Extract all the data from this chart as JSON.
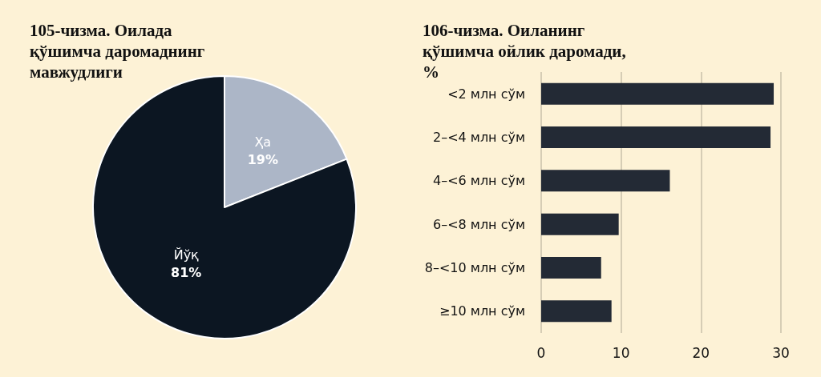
{
  "chart_data": [
    {
      "type": "pie",
      "title": "105-чизма. Оилада қўшимча даромаднинг мавжудлиги",
      "categories": [
        "Ҳа",
        "Йўқ"
      ],
      "values": [
        19,
        81
      ],
      "colors": [
        "#acb6c7",
        "#0c1622"
      ],
      "value_labels": [
        "19%",
        "81%"
      ]
    },
    {
      "type": "bar",
      "orientation": "horizontal",
      "title": "106-чизма. Оиланинг қўшимча ойлик даромади, %",
      "categories": [
        "<2 млн сўм",
        "2–<4 млн сўм",
        "4–<6 млн сўм",
        "6–<8 млн сўм",
        "8–<10 млн сўм",
        "≥10 млн сўм"
      ],
      "values": [
        29.1,
        28.7,
        16.1,
        9.7,
        7.5,
        8.8
      ],
      "color": "#232a35",
      "xlim": [
        0,
        30
      ],
      "xticks": [
        0,
        10,
        20,
        30
      ],
      "grid": "x"
    }
  ]
}
